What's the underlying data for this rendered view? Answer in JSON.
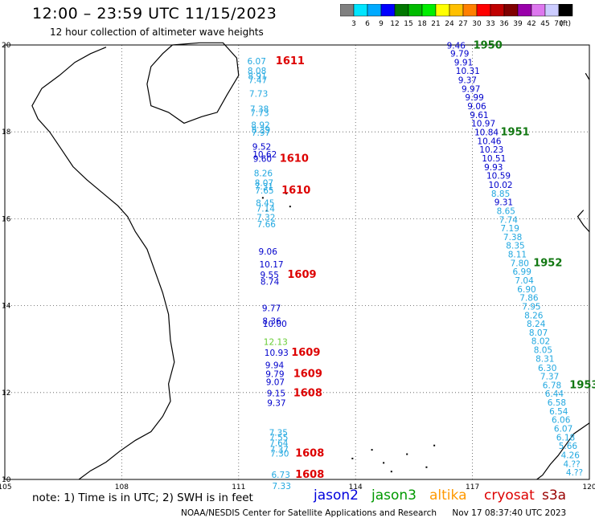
{
  "header": {
    "title": "12:00 – 23:59 UTC 11/15/2023",
    "subtitle": "12 hour collection of altimeter wave heights"
  },
  "scale": {
    "colors": [
      "#808080",
      "#00e5ff",
      "#00aaff",
      "#0000ff",
      "#007700",
      "#00bb00",
      "#00ee00",
      "#ffff00",
      "#ffc000",
      "#ff8000",
      "#ff0000",
      "#c00000",
      "#800000",
      "#9900aa",
      "#dd77ee",
      "#ccccff",
      "#000000"
    ],
    "labels": [
      "3",
      "6",
      "9",
      "12",
      "15",
      "18",
      "21",
      "24",
      "27",
      "30",
      "33",
      "36",
      "39",
      "42",
      "45",
      "70"
    ],
    "unit": "(ft)"
  },
  "map": {
    "lat_range": [
      10,
      20
    ],
    "lon_range": [
      105,
      120
    ],
    "lat_ticks": [
      "20",
      "18",
      "16",
      "14",
      "12",
      "10"
    ],
    "lon_ticks": [
      "105",
      "108",
      "111",
      "114",
      "117",
      "120"
    ],
    "tracks": [
      {
        "name": "track-west",
        "points": [
          {
            "lat": 19.56,
            "lon": 111.22,
            "v": "6.07",
            "c": "#22a8e0"
          },
          {
            "lat": 19.33,
            "lon": 111.23,
            "v": "8.08",
            "c": "#22a8e0"
          },
          {
            "lat": 19.21,
            "lon": 111.24,
            "v": "8.91",
            "c": "#22a8e0"
          },
          {
            "lat": 19.12,
            "lon": 111.25,
            "v": "7.47",
            "c": "#22a8e0"
          },
          {
            "lat": 18.81,
            "lon": 111.27,
            "v": "7.73",
            "c": "#22a8e0"
          },
          {
            "lat": 18.46,
            "lon": 111.29,
            "v": "7.38",
            "c": "#22a8e0"
          },
          {
            "lat": 18.36,
            "lon": 111.3,
            "v": "7.73",
            "c": "#22a8e0"
          },
          {
            "lat": 18.09,
            "lon": 111.32,
            "v": "8.92",
            "c": "#22a8e0"
          },
          {
            "lat": 17.98,
            "lon": 111.33,
            "v": "8.39",
            "c": "#22a8e0"
          },
          {
            "lat": 17.91,
            "lon": 111.33,
            "v": "7.97",
            "c": "#22a8e0"
          },
          {
            "lat": 17.59,
            "lon": 111.35,
            "v": "9.52",
            "c": "#0000cc"
          },
          {
            "lat": 17.41,
            "lon": 111.36,
            "v": "10.62",
            "c": "#0000cc"
          },
          {
            "lat": 17.31,
            "lon": 111.37,
            "v": "9.60",
            "c": "#0000cc"
          },
          {
            "lat": 16.98,
            "lon": 111.39,
            "v": "8.26",
            "c": "#22a8e0"
          },
          {
            "lat": 16.76,
            "lon": 111.41,
            "v": "8.07",
            "c": "#22a8e0"
          },
          {
            "lat": 16.67,
            "lon": 111.41,
            "v": "7.31",
            "c": "#22a8e0"
          },
          {
            "lat": 16.58,
            "lon": 111.42,
            "v": "7.65",
            "c": "#22a8e0"
          },
          {
            "lat": 16.29,
            "lon": 111.44,
            "v": "8.45",
            "c": "#22a8e0"
          },
          {
            "lat": 16.16,
            "lon": 111.45,
            "v": "7.14",
            "c": "#22a8e0"
          },
          {
            "lat": 15.96,
            "lon": 111.46,
            "v": "7.32",
            "c": "#22a8e0"
          },
          {
            "lat": 15.8,
            "lon": 111.47,
            "v": "7.66",
            "c": "#22a8e0"
          },
          {
            "lat": 15.18,
            "lon": 111.51,
            "v": "9.06",
            "c": "#0000cc"
          },
          {
            "lat": 14.88,
            "lon": 111.53,
            "v": "10.17",
            "c": "#0000cc"
          },
          {
            "lat": 14.64,
            "lon": 111.55,
            "v": "9.55",
            "c": "#0000cc"
          },
          {
            "lat": 14.48,
            "lon": 111.56,
            "v": "8.74",
            "c": "#0000cc"
          },
          {
            "lat": 13.87,
            "lon": 111.6,
            "v": "9.77",
            "c": "#0000cc"
          },
          {
            "lat": 13.58,
            "lon": 111.61,
            "v": "8.36",
            "c": "#0000cc"
          },
          {
            "lat": 13.51,
            "lon": 111.62,
            "v": "10.00",
            "c": "#0000cc"
          },
          {
            "lat": 13.1,
            "lon": 111.64,
            "v": "12.13",
            "c": "#66cc33"
          },
          {
            "lat": 12.85,
            "lon": 111.66,
            "v": "10.93",
            "c": "#0000cc"
          },
          {
            "lat": 12.56,
            "lon": 111.68,
            "v": "9.94",
            "c": "#0000cc"
          },
          {
            "lat": 12.36,
            "lon": 111.69,
            "v": "9.79",
            "c": "#0000cc"
          },
          {
            "lat": 12.17,
            "lon": 111.7,
            "v": "9.07",
            "c": "#0000cc"
          },
          {
            "lat": 11.91,
            "lon": 111.72,
            "v": "9.15",
            "c": "#0000cc"
          },
          {
            "lat": 11.69,
            "lon": 111.73,
            "v": "9.37",
            "c": "#0000cc"
          },
          {
            "lat": 11.01,
            "lon": 111.78,
            "v": "7.35",
            "c": "#22a8e0"
          },
          {
            "lat": 10.9,
            "lon": 111.79,
            "v": "7.55",
            "c": "#22a8e0"
          },
          {
            "lat": 10.77,
            "lon": 111.79,
            "v": "7.64",
            "c": "#22a8e0"
          },
          {
            "lat": 10.62,
            "lon": 111.8,
            "v": "7.37",
            "c": "#22a8e0"
          },
          {
            "lat": 10.53,
            "lon": 111.81,
            "v": "7.30",
            "c": "#22a8e0"
          },
          {
            "lat": 10.04,
            "lon": 111.84,
            "v": "6.73",
            "c": "#22a8e0"
          },
          {
            "lat": 9.78,
            "lon": 111.86,
            "v": "7.33",
            "c": "#22a8e0"
          }
        ]
      },
      {
        "name": "track-east",
        "points": [
          {
            "lat": 19.92,
            "lon": 116.34,
            "v": "9.46",
            "c": "#0000cc"
          },
          {
            "lat": 19.73,
            "lon": 116.43,
            "v": "9.79",
            "c": "#0000cc"
          },
          {
            "lat": 19.53,
            "lon": 116.53,
            "v": "9.91",
            "c": "#0000cc"
          },
          {
            "lat": 19.33,
            "lon": 116.57,
            "v": "10.31",
            "c": "#0000cc"
          },
          {
            "lat": 19.12,
            "lon": 116.63,
            "v": "9.37",
            "c": "#0000cc"
          },
          {
            "lat": 18.92,
            "lon": 116.72,
            "v": "9.97",
            "c": "#0000cc"
          },
          {
            "lat": 18.72,
            "lon": 116.81,
            "v": "9.99",
            "c": "#0000cc"
          },
          {
            "lat": 18.52,
            "lon": 116.87,
            "v": "9.06",
            "c": "#0000cc"
          },
          {
            "lat": 18.32,
            "lon": 116.93,
            "v": "9.61",
            "c": "#0000cc"
          },
          {
            "lat": 18.12,
            "lon": 116.97,
            "v": "10.97",
            "c": "#0000cc"
          },
          {
            "lat": 17.92,
            "lon": 117.05,
            "v": "10.84",
            "c": "#0000cc"
          },
          {
            "lat": 17.72,
            "lon": 117.12,
            "v": "10.46",
            "c": "#0000cc"
          },
          {
            "lat": 17.52,
            "lon": 117.18,
            "v": "10.23",
            "c": "#0000cc"
          },
          {
            "lat": 17.32,
            "lon": 117.24,
            "v": "10.51",
            "c": "#0000cc"
          },
          {
            "lat": 17.12,
            "lon": 117.3,
            "v": "9.93",
            "c": "#0000cc"
          },
          {
            "lat": 16.92,
            "lon": 117.36,
            "v": "10.59",
            "c": "#0000cc"
          },
          {
            "lat": 16.71,
            "lon": 117.41,
            "v": "10.02",
            "c": "#0000cc"
          },
          {
            "lat": 16.51,
            "lon": 117.48,
            "v": "8.85",
            "c": "#22a8e0"
          },
          {
            "lat": 16.31,
            "lon": 117.56,
            "v": "9.31",
            "c": "#0000cc"
          },
          {
            "lat": 16.11,
            "lon": 117.62,
            "v": "8.65",
            "c": "#22a8e0"
          },
          {
            "lat": 15.91,
            "lon": 117.68,
            "v": "7.74",
            "c": "#22a8e0"
          },
          {
            "lat": 15.71,
            "lon": 117.72,
            "v": "7.19",
            "c": "#22a8e0"
          },
          {
            "lat": 15.51,
            "lon": 117.79,
            "v": "7.38",
            "c": "#22a8e0"
          },
          {
            "lat": 15.31,
            "lon": 117.86,
            "v": "8.35",
            "c": "#22a8e0"
          },
          {
            "lat": 15.11,
            "lon": 117.91,
            "v": "8.11",
            "c": "#22a8e0"
          },
          {
            "lat": 14.91,
            "lon": 117.97,
            "v": "7.80",
            "c": "#22a8e0"
          },
          {
            "lat": 14.71,
            "lon": 118.03,
            "v": "6.99",
            "c": "#22a8e0"
          },
          {
            "lat": 14.51,
            "lon": 118.09,
            "v": "7.04",
            "c": "#22a8e0"
          },
          {
            "lat": 14.31,
            "lon": 118.15,
            "v": "6.90",
            "c": "#22a8e0"
          },
          {
            "lat": 14.11,
            "lon": 118.21,
            "v": "7.86",
            "c": "#22a8e0"
          },
          {
            "lat": 13.91,
            "lon": 118.27,
            "v": "7.95",
            "c": "#22a8e0"
          },
          {
            "lat": 13.71,
            "lon": 118.33,
            "v": "8.26",
            "c": "#22a8e0"
          },
          {
            "lat": 13.51,
            "lon": 118.39,
            "v": "8.24",
            "c": "#22a8e0"
          },
          {
            "lat": 13.31,
            "lon": 118.45,
            "v": "8.07",
            "c": "#22a8e0"
          },
          {
            "lat": 13.11,
            "lon": 118.51,
            "v": "8.02",
            "c": "#22a8e0"
          },
          {
            "lat": 12.91,
            "lon": 118.57,
            "v": "8.05",
            "c": "#22a8e0"
          },
          {
            "lat": 12.71,
            "lon": 118.62,
            "v": "8.31",
            "c": "#22a8e0"
          },
          {
            "lat": 12.5,
            "lon": 118.68,
            "v": "6.30",
            "c": "#22a8e0"
          },
          {
            "lat": 12.3,
            "lon": 118.74,
            "v": "7.37",
            "c": "#22a8e0"
          },
          {
            "lat": 12.1,
            "lon": 118.8,
            "v": "6.78",
            "c": "#22a8e0"
          },
          {
            "lat": 11.9,
            "lon": 118.86,
            "v": "6.44",
            "c": "#22a8e0"
          },
          {
            "lat": 11.7,
            "lon": 118.92,
            "v": "6.58",
            "c": "#22a8e0"
          },
          {
            "lat": 11.5,
            "lon": 118.97,
            "v": "6.54",
            "c": "#22a8e0"
          },
          {
            "lat": 11.3,
            "lon": 119.03,
            "v": "6.06",
            "c": "#22a8e0"
          },
          {
            "lat": 11.1,
            "lon": 119.09,
            "v": "6.07",
            "c": "#22a8e0"
          },
          {
            "lat": 10.9,
            "lon": 119.15,
            "v": "6.18",
            "c": "#22a8e0"
          },
          {
            "lat": 10.7,
            "lon": 119.21,
            "v": "5.66",
            "c": "#22a8e0"
          },
          {
            "lat": 10.49,
            "lon": 119.27,
            "v": "4.26",
            "c": "#22a8e0"
          },
          {
            "lat": 10.29,
            "lon": 119.33,
            "v": "4.??",
            "c": "#22a8e0"
          },
          {
            "lat": 10.09,
            "lon": 119.4,
            "v": "4.??",
            "c": "#22a8e0"
          }
        ]
      }
    ],
    "time_labels": [
      {
        "lat": 19.56,
        "lon": 111.95,
        "t": "1611",
        "c": "#dd0000"
      },
      {
        "lat": 17.31,
        "lon": 112.05,
        "t": "1610",
        "c": "#dd0000"
      },
      {
        "lat": 16.58,
        "lon": 112.1,
        "t": "1610",
        "c": "#dd0000"
      },
      {
        "lat": 14.64,
        "lon": 112.25,
        "t": "1609",
        "c": "#dd0000"
      },
      {
        "lat": 12.85,
        "lon": 112.35,
        "t": "1609",
        "c": "#dd0000"
      },
      {
        "lat": 12.36,
        "lon": 112.4,
        "t": "1609",
        "c": "#dd0000"
      },
      {
        "lat": 11.91,
        "lon": 112.4,
        "t": "1608",
        "c": "#dd0000"
      },
      {
        "lat": 10.53,
        "lon": 112.45,
        "t": "1608",
        "c": "#dd0000"
      },
      {
        "lat": 10.04,
        "lon": 112.45,
        "t": "1608",
        "c": "#dd0000"
      },
      {
        "lat": 19.92,
        "lon": 117.02,
        "t": "1950",
        "c": "#117711"
      },
      {
        "lat": 17.92,
        "lon": 117.72,
        "t": "1951",
        "c": "#117711"
      },
      {
        "lat": 14.91,
        "lon": 118.56,
        "t": "1952",
        "c": "#117711"
      },
      {
        "lat": 12.1,
        "lon": 119.49,
        "t": "1953",
        "c": "#117711"
      }
    ]
  },
  "footer": {
    "note": "note:  1) Time is in UTC;  2) SWH is in feet",
    "satellites": [
      {
        "name": "jason2",
        "color": "#0000dd"
      },
      {
        "name": "jason3",
        "color": "#009900"
      },
      {
        "name": "altika",
        "color": "#ff9900"
      },
      {
        "name": "cryosat",
        "color": "#dd0000"
      },
      {
        "name": "s3a",
        "color": "#990000"
      }
    ],
    "credit": "NOAA/NESDIS Center for Satellite Applications and Research",
    "timestamp": "Nov 17 08:37:40 UTC 2023"
  }
}
